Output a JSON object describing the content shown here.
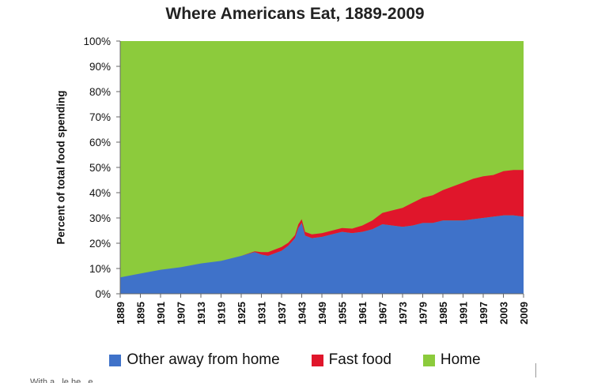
{
  "chart_data": {
    "type": "area",
    "stacked": true,
    "title": "Where Americans Eat, 1889-2009",
    "xlabel": "",
    "ylabel": "Percent of total food spending",
    "ylim": [
      0,
      100
    ],
    "yticks": [
      "0%",
      "10%",
      "20%",
      "30%",
      "40%",
      "50%",
      "60%",
      "70%",
      "80%",
      "90%",
      "100%"
    ],
    "xticks": [
      "1889",
      "1895",
      "1901",
      "1907",
      "1913",
      "1919",
      "1925",
      "1931",
      "1937",
      "1943",
      "1949",
      "1955",
      "1961",
      "1967",
      "1973",
      "1979",
      "1985",
      "1991",
      "1997",
      "2003",
      "2009"
    ],
    "x": [
      1889,
      1895,
      1901,
      1907,
      1913,
      1919,
      1925,
      1929,
      1931,
      1933,
      1935,
      1937,
      1939,
      1941,
      1942,
      1943,
      1944,
      1946,
      1949,
      1952,
      1955,
      1958,
      1961,
      1964,
      1967,
      1970,
      1973,
      1976,
      1979,
      1982,
      1985,
      1988,
      1991,
      1994,
      1997,
      2000,
      2003,
      2006,
      2009
    ],
    "series": [
      {
        "name": "Other away from home",
        "color": "#3f72c9",
        "values": [
          6.5,
          8,
          9.5,
          10.5,
          12,
          13,
          15,
          16.5,
          15.5,
          15,
          16,
          17,
          19,
          22,
          26,
          28,
          23,
          22,
          22.5,
          23.5,
          24.5,
          24,
          24.5,
          25.5,
          27.5,
          27,
          26.5,
          27,
          28,
          28,
          29,
          29,
          29,
          29.5,
          30,
          30.5,
          31,
          31,
          30.5
        ]
      },
      {
        "name": "Fast food",
        "color": "#e0162b",
        "values": [
          0,
          0,
          0,
          0,
          0,
          0,
          0,
          0.3,
          1,
          1.5,
          1.5,
          1.5,
          1.2,
          1.2,
          1.5,
          1.5,
          1.5,
          1.5,
          1.5,
          1.5,
          1.5,
          1.8,
          2.5,
          3.5,
          4.5,
          6,
          7.5,
          9,
          10,
          11,
          12,
          13.5,
          15,
          16,
          16.5,
          16.5,
          17.5,
          18,
          18.5
        ]
      },
      {
        "name": "Home",
        "color": "#8ccb3c",
        "values": "remainder to 100%"
      }
    ],
    "legend": {
      "position": "bottom",
      "entries": [
        "Other away from home",
        "Fast food",
        "Home"
      ]
    },
    "grid": false
  },
  "colors": {
    "home": "#8ccb3c",
    "fast_food": "#e0162b",
    "other": "#3f72c9",
    "axis": "#555555"
  },
  "caption_partial": "With a...le he...e..."
}
